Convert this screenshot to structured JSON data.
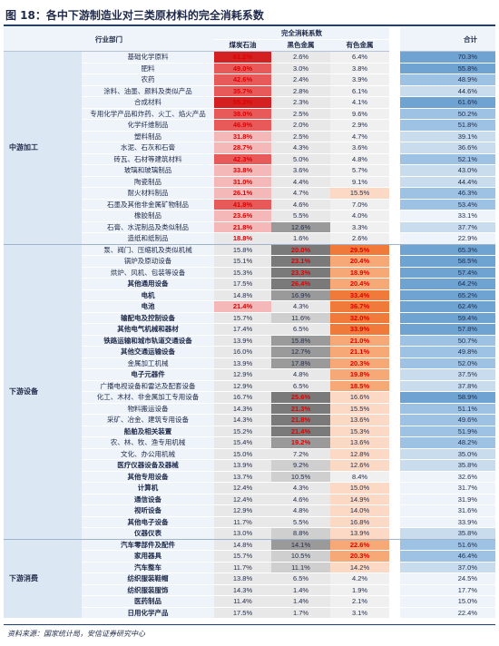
{
  "title": "图 18：各中下游制造业对三类原材料的完全消耗系数",
  "source": "资料来源：国家统计局，安信证券研究中心",
  "colors": {
    "coal_scale": [
      "#e8e8e8",
      "#f4b8b8",
      "#e85a5a",
      "#d42020"
    ],
    "metal_scale": [
      "#e8e8e8",
      "#cfcfcf",
      "#9a9a9a",
      "#7a7a7a"
    ],
    "nonferrous_scale": [
      "#f0f0f0",
      "#fbd9c4",
      "#f7a877",
      "#f07a3a"
    ],
    "total_scale": [
      "#eef4fa",
      "#c9dcee",
      "#9ec2e3",
      "#6fa3d2"
    ],
    "red_text": "#e00000"
  },
  "header": {
    "industry": "行业部门",
    "group_header": "完全消耗系数",
    "coal": "煤炭石油",
    "metal": "黑色金属",
    "nonferrous": "有色金属",
    "total": "合计"
  },
  "sections": [
    {
      "name": "中游加工",
      "rows": [
        {
          "industry": "基础化学原料",
          "coal": "61.2%",
          "metal": "2.6%",
          "nonferrous": "6.4%",
          "total": "70.3%",
          "bold": false,
          "coal_v": 61.2,
          "metal_v": 2.6,
          "nonferrous_v": 6.4,
          "total_v": 70.3
        },
        {
          "industry": "肥料",
          "coal": "49.0%",
          "metal": "3.0%",
          "nonferrous": "3.8%",
          "total": "55.8%",
          "bold": false,
          "coal_v": 49.0,
          "metal_v": 3.0,
          "nonferrous_v": 3.8,
          "total_v": 55.8
        },
        {
          "industry": "农药",
          "coal": "42.6%",
          "metal": "2.4%",
          "nonferrous": "3.9%",
          "total": "48.9%",
          "bold": false,
          "coal_v": 42.6,
          "metal_v": 2.4,
          "nonferrous_v": 3.9,
          "total_v": 48.9
        },
        {
          "industry": "涂料、油墨、颜料及类似产品",
          "coal": "35.7%",
          "metal": "2.8%",
          "nonferrous": "6.1%",
          "total": "44.6%",
          "bold": false,
          "coal_v": 35.7,
          "metal_v": 2.8,
          "nonferrous_v": 6.1,
          "total_v": 44.6
        },
        {
          "industry": "合成材料",
          "coal": "55.2%",
          "metal": "2.3%",
          "nonferrous": "4.1%",
          "total": "61.6%",
          "bold": false,
          "coal_v": 55.2,
          "metal_v": 2.3,
          "nonferrous_v": 4.1,
          "total_v": 61.6
        },
        {
          "industry": "专用化学产品和炸药、火工、焰火产品",
          "coal": "38.0%",
          "metal": "2.5%",
          "nonferrous": "9.6%",
          "total": "50.2%",
          "bold": false,
          "coal_v": 38.0,
          "metal_v": 2.5,
          "nonferrous_v": 9.6,
          "total_v": 50.2
        },
        {
          "industry": "化学纤维制品",
          "coal": "46.9%",
          "metal": "2.0%",
          "nonferrous": "2.9%",
          "total": "51.8%",
          "bold": false,
          "coal_v": 46.9,
          "metal_v": 2.0,
          "nonferrous_v": 2.9,
          "total_v": 51.8
        },
        {
          "industry": "塑料制品",
          "coal": "31.8%",
          "metal": "2.5%",
          "nonferrous": "4.7%",
          "total": "39.1%",
          "bold": false,
          "coal_v": 31.8,
          "metal_v": 2.5,
          "nonferrous_v": 4.7,
          "total_v": 39.1
        },
        {
          "industry": "水泥、石灰和石膏",
          "coal": "28.7%",
          "metal": "4.3%",
          "nonferrous": "3.6%",
          "total": "36.6%",
          "bold": false,
          "coal_v": 28.7,
          "metal_v": 4.3,
          "nonferrous_v": 3.6,
          "total_v": 36.6
        },
        {
          "industry": "砖瓦、石材等建筑材料",
          "coal": "42.3%",
          "metal": "5.0%",
          "nonferrous": "4.8%",
          "total": "52.1%",
          "bold": false,
          "coal_v": 42.3,
          "metal_v": 5.0,
          "nonferrous_v": 4.8,
          "total_v": 52.1
        },
        {
          "industry": "玻璃和玻璃制品",
          "coal": "33.8%",
          "metal": "3.6%",
          "nonferrous": "5.7%",
          "total": "43.0%",
          "bold": false,
          "coal_v": 33.8,
          "metal_v": 3.6,
          "nonferrous_v": 5.7,
          "total_v": 43.0
        },
        {
          "industry": "陶瓷制品",
          "coal": "31.0%",
          "metal": "4.4%",
          "nonferrous": "9.1%",
          "total": "44.4%",
          "bold": false,
          "coal_v": 31.0,
          "metal_v": 4.4,
          "nonferrous_v": 9.1,
          "total_v": 44.4
        },
        {
          "industry": "耐火材料制品",
          "coal": "26.1%",
          "metal": "4.7%",
          "nonferrous": "15.5%",
          "total": "46.3%",
          "bold": false,
          "coal_v": 26.1,
          "metal_v": 4.7,
          "nonferrous_v": 15.5,
          "total_v": 46.3
        },
        {
          "industry": "石墨及其他非金属矿物制品",
          "coal": "41.8%",
          "metal": "4.6%",
          "nonferrous": "7.0%",
          "total": "53.4%",
          "bold": false,
          "coal_v": 41.8,
          "metal_v": 4.6,
          "nonferrous_v": 7.0,
          "total_v": 53.4
        },
        {
          "industry": "橡胶制品",
          "coal": "23.6%",
          "metal": "5.5%",
          "nonferrous": "4.0%",
          "total": "33.1%",
          "bold": false,
          "coal_v": 23.6,
          "metal_v": 5.5,
          "nonferrous_v": 4.0,
          "total_v": 33.1
        },
        {
          "industry": "石膏、水泥制品及类似制品",
          "coal": "21.8%",
          "metal": "12.6%",
          "nonferrous": "3.3%",
          "total": "37.7%",
          "bold": false,
          "coal_v": 21.8,
          "metal_v": 12.6,
          "nonferrous_v": 3.3,
          "total_v": 37.7
        },
        {
          "industry": "造纸和纸制品",
          "coal": "18.8%",
          "metal": "1.6%",
          "nonferrous": "2.6%",
          "total": "22.9%",
          "bold": false,
          "coal_v": 18.8,
          "metal_v": 1.6,
          "nonferrous_v": 2.6,
          "total_v": 22.9
        }
      ]
    },
    {
      "name": "下游设备",
      "rows": [
        {
          "industry": "泵、阀门、压缩机及类似机械",
          "coal": "15.8%",
          "metal": "20.0%",
          "nonferrous": "29.5%",
          "total": "65.3%",
          "bold": false,
          "coal_v": 15.8,
          "metal_v": 20.0,
          "nonferrous_v": 29.5,
          "total_v": 65.3
        },
        {
          "industry": "锅炉及原动设备",
          "coal": "15.1%",
          "metal": "23.1%",
          "nonferrous": "20.4%",
          "total": "58.5%",
          "bold": false,
          "coal_v": 15.1,
          "metal_v": 23.1,
          "nonferrous_v": 20.4,
          "total_v": 58.5
        },
        {
          "industry": "烘炉、风机、包装等设备",
          "coal": "15.3%",
          "metal": "23.3%",
          "nonferrous": "18.9%",
          "total": "57.4%",
          "bold": false,
          "coal_v": 15.3,
          "metal_v": 23.3,
          "nonferrous_v": 18.9,
          "total_v": 57.4
        },
        {
          "industry": "其他通用设备",
          "coal": "17.5%",
          "metal": "26.4%",
          "nonferrous": "20.4%",
          "total": "64.2%",
          "bold": true,
          "coal_v": 17.5,
          "metal_v": 26.4,
          "nonferrous_v": 20.4,
          "total_v": 64.2
        },
        {
          "industry": "电机",
          "coal": "14.8%",
          "metal": "16.9%",
          "nonferrous": "33.4%",
          "total": "65.2%",
          "bold": true,
          "coal_v": 14.8,
          "metal_v": 16.9,
          "nonferrous_v": 33.4,
          "total_v": 65.2
        },
        {
          "industry": "电池",
          "coal": "21.4%",
          "metal": "4.3%",
          "nonferrous": "36.7%",
          "total": "62.4%",
          "bold": true,
          "coal_v": 21.4,
          "metal_v": 4.3,
          "nonferrous_v": 36.7,
          "total_v": 62.4
        },
        {
          "industry": "输配电及控制设备",
          "coal": "15.7%",
          "metal": "11.6%",
          "nonferrous": "32.0%",
          "total": "59.4%",
          "bold": true,
          "coal_v": 15.7,
          "metal_v": 11.6,
          "nonferrous_v": 32.0,
          "total_v": 59.4
        },
        {
          "industry": "其他电气机械和器材",
          "coal": "17.4%",
          "metal": "6.5%",
          "nonferrous": "33.9%",
          "total": "57.8%",
          "bold": true,
          "coal_v": 17.4,
          "metal_v": 6.5,
          "nonferrous_v": 33.9,
          "total_v": 57.8
        },
        {
          "industry": "铁路运输和城市轨道交通设备",
          "coal": "13.9%",
          "metal": "15.8%",
          "nonferrous": "21.0%",
          "total": "50.7%",
          "bold": true,
          "coal_v": 13.9,
          "metal_v": 15.8,
          "nonferrous_v": 21.0,
          "total_v": 50.7
        },
        {
          "industry": "其他交通运输设备",
          "coal": "16.0%",
          "metal": "12.7%",
          "nonferrous": "21.1%",
          "total": "49.8%",
          "bold": true,
          "coal_v": 16.0,
          "metal_v": 12.7,
          "nonferrous_v": 21.1,
          "total_v": 49.8
        },
        {
          "industry": "金属加工机械",
          "coal": "13.9%",
          "metal": "17.8%",
          "nonferrous": "20.3%",
          "total": "52.0%",
          "bold": false,
          "coal_v": 13.9,
          "metal_v": 17.8,
          "nonferrous_v": 20.3,
          "total_v": 52.0
        },
        {
          "industry": "电子元器件",
          "coal": "12.9%",
          "metal": "4.8%",
          "nonferrous": "19.8%",
          "total": "37.5%",
          "bold": true,
          "coal_v": 12.9,
          "metal_v": 4.8,
          "nonferrous_v": 19.8,
          "total_v": 37.5
        },
        {
          "industry": "广播电视设备和雷达及配套设备",
          "coal": "12.9%",
          "metal": "6.5%",
          "nonferrous": "18.5%",
          "total": "37.8%",
          "bold": false,
          "coal_v": 12.9,
          "metal_v": 6.5,
          "nonferrous_v": 18.5,
          "total_v": 37.8
        },
        {
          "industry": "化工、木材、非金属加工专用设备",
          "coal": "16.7%",
          "metal": "25.6%",
          "nonferrous": "16.6%",
          "total": "58.9%",
          "bold": false,
          "coal_v": 16.7,
          "metal_v": 25.6,
          "nonferrous_v": 16.6,
          "total_v": 58.9
        },
        {
          "industry": "物料搬运设备",
          "coal": "14.3%",
          "metal": "21.3%",
          "nonferrous": "15.5%",
          "total": "51.1%",
          "bold": false,
          "coal_v": 14.3,
          "metal_v": 21.3,
          "nonferrous_v": 15.5,
          "total_v": 51.1
        },
        {
          "industry": "采矿、冶金、建筑专用设备",
          "coal": "14.3%",
          "metal": "21.8%",
          "nonferrous": "13.6%",
          "total": "49.6%",
          "bold": false,
          "coal_v": 14.3,
          "metal_v": 21.8,
          "nonferrous_v": 13.6,
          "total_v": 49.6
        },
        {
          "industry": "船舶及相关装置",
          "coal": "15.2%",
          "metal": "21.4%",
          "nonferrous": "15.3%",
          "total": "51.9%",
          "bold": true,
          "coal_v": 15.2,
          "metal_v": 21.4,
          "nonferrous_v": 15.3,
          "total_v": 51.9
        },
        {
          "industry": "农、林、牧、渔专用机械",
          "coal": "15.4%",
          "metal": "19.2%",
          "nonferrous": "13.6%",
          "total": "48.2%",
          "bold": false,
          "coal_v": 15.4,
          "metal_v": 19.2,
          "nonferrous_v": 13.6,
          "total_v": 48.2
        },
        {
          "industry": "文化、办公用机械",
          "coal": "15.0%",
          "metal": "7.2%",
          "nonferrous": "12.8%",
          "total": "35.0%",
          "bold": false,
          "coal_v": 15.0,
          "metal_v": 7.2,
          "nonferrous_v": 12.8,
          "total_v": 35.0
        },
        {
          "industry": "医疗仪器设备及器械",
          "coal": "13.9%",
          "metal": "9.2%",
          "nonferrous": "12.6%",
          "total": "35.8%",
          "bold": true,
          "coal_v": 13.9,
          "metal_v": 9.2,
          "nonferrous_v": 12.6,
          "total_v": 35.8
        },
        {
          "industry": "其他专用设备",
          "coal": "13.7%",
          "metal": "10.5%",
          "nonferrous": "8.4%",
          "total": "32.6%",
          "bold": true,
          "coal_v": 13.7,
          "metal_v": 10.5,
          "nonferrous_v": 8.4,
          "total_v": 32.6
        },
        {
          "industry": "计算机",
          "coal": "12.4%",
          "metal": "4.3%",
          "nonferrous": "15.0%",
          "total": "31.7%",
          "bold": true,
          "coal_v": 12.4,
          "metal_v": 4.3,
          "nonferrous_v": 15.0,
          "total_v": 31.7
        },
        {
          "industry": "通信设备",
          "coal": "12.4%",
          "metal": "4.6%",
          "nonferrous": "14.9%",
          "total": "31.9%",
          "bold": true,
          "coal_v": 12.4,
          "metal_v": 4.6,
          "nonferrous_v": 14.9,
          "total_v": 31.9
        },
        {
          "industry": "视听设备",
          "coal": "12.9%",
          "metal": "4.8%",
          "nonferrous": "14.0%",
          "total": "31.6%",
          "bold": true,
          "coal_v": 12.9,
          "metal_v": 4.8,
          "nonferrous_v": 14.0,
          "total_v": 31.6
        },
        {
          "industry": "其他电子设备",
          "coal": "11.7%",
          "metal": "5.5%",
          "nonferrous": "16.8%",
          "total": "33.9%",
          "bold": true,
          "coal_v": 11.7,
          "metal_v": 5.5,
          "nonferrous_v": 16.8,
          "total_v": 33.9
        },
        {
          "industry": "仪器仪表",
          "coal": "13.0%",
          "metal": "8.8%",
          "nonferrous": "13.9%",
          "total": "35.8%",
          "bold": true,
          "coal_v": 13.0,
          "metal_v": 8.8,
          "nonferrous_v": 13.9,
          "total_v": 35.8
        }
      ]
    },
    {
      "name": "下游消费",
      "rows": [
        {
          "industry": "汽车零部件及配件",
          "coal": "14.8%",
          "metal": "14.1%",
          "nonferrous": "22.6%",
          "total": "51.6%",
          "bold": true,
          "coal_v": 14.8,
          "metal_v": 14.1,
          "nonferrous_v": 22.6,
          "total_v": 51.6
        },
        {
          "industry": "家用器具",
          "coal": "15.7%",
          "metal": "10.5%",
          "nonferrous": "20.3%",
          "total": "46.4%",
          "bold": true,
          "coal_v": 15.7,
          "metal_v": 10.5,
          "nonferrous_v": 20.3,
          "total_v": 46.4
        },
        {
          "industry": "汽车整车",
          "coal": "11.7%",
          "metal": "11.1%",
          "nonferrous": "14.2%",
          "total": "37.0%",
          "bold": true,
          "coal_v": 11.7,
          "metal_v": 11.1,
          "nonferrous_v": 14.2,
          "total_v": 37.0
        },
        {
          "industry": "纺织服装鞋帽",
          "coal": "13.8%",
          "metal": "6.5%",
          "nonferrous": "4.2%",
          "total": "24.5%",
          "bold": true,
          "coal_v": 13.8,
          "metal_v": 6.5,
          "nonferrous_v": 4.2,
          "total_v": 24.5
        },
        {
          "industry": "纺织服装服饰",
          "coal": "14.3%",
          "metal": "1.4%",
          "nonferrous": "1.9%",
          "total": "17.7%",
          "bold": true,
          "coal_v": 14.3,
          "metal_v": 1.4,
          "nonferrous_v": 1.9,
          "total_v": 17.7
        },
        {
          "industry": "医药制品",
          "coal": "11.4%",
          "metal": "1.4%",
          "nonferrous": "2.1%",
          "total": "15.0%",
          "bold": true,
          "coal_v": 11.4,
          "metal_v": 1.4,
          "nonferrous_v": 2.1,
          "total_v": 15.0
        },
        {
          "industry": "日用化学产品",
          "coal": "17.5%",
          "metal": "1.7%",
          "nonferrous": "3.1%",
          "total": "22.4%",
          "bold": true,
          "coal_v": 17.5,
          "metal_v": 1.7,
          "nonferrous_v": 3.1,
          "total_v": 22.4
        }
      ]
    }
  ]
}
